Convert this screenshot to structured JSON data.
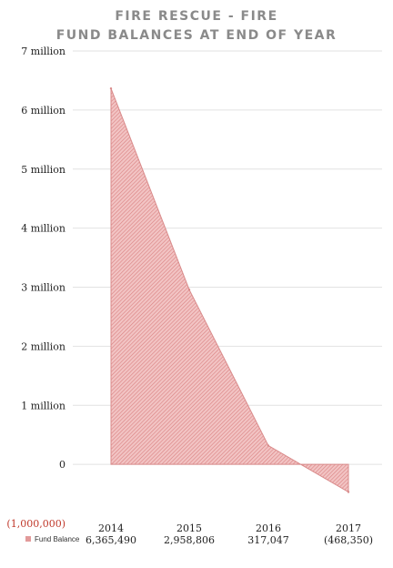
{
  "chart_data": {
    "type": "area",
    "title_line1": "FIRE RESCUE - FIRE",
    "title_line2": "FUND BALANCES AT END OF YEAR",
    "categories": [
      "2014",
      "2015",
      "2016",
      "2017"
    ],
    "value_labels": [
      "6,365,490",
      "2,958,806",
      "317,047",
      "(468,350)"
    ],
    "series": [
      {
        "name": "Fund Balance",
        "values": [
          6365490,
          2958806,
          317047,
          -468350
        ]
      }
    ],
    "y_ticks": [
      {
        "value": 7000000,
        "label": "7 million"
      },
      {
        "value": 6000000,
        "label": "6 million"
      },
      {
        "value": 5000000,
        "label": "5 million"
      },
      {
        "value": 4000000,
        "label": "4 million"
      },
      {
        "value": 3000000,
        "label": "3 million"
      },
      {
        "value": 2000000,
        "label": "2 million"
      },
      {
        "value": 1000000,
        "label": "1 million"
      },
      {
        "value": 0,
        "label": "0"
      },
      {
        "value": -1000000,
        "label": "(1,000,000)"
      }
    ],
    "ylim": [
      -1000000,
      7000000
    ],
    "grid": true,
    "legend_position": "bottom-left",
    "colors": {
      "fill": "#e89a9a",
      "hatch": "#c0392b",
      "title": "#8a8a8a",
      "negative_label": "#c0392b"
    }
  }
}
